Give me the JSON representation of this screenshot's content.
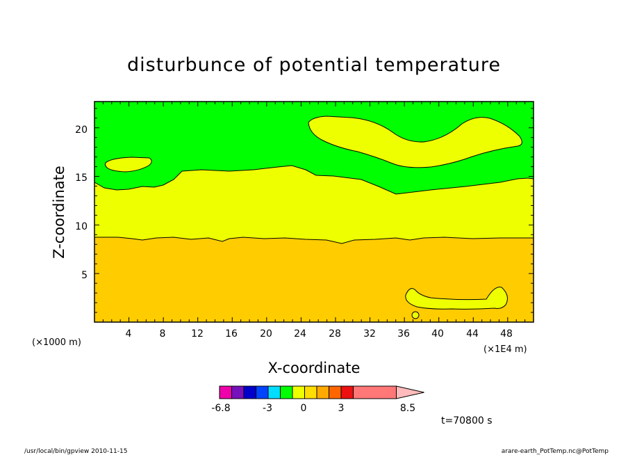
{
  "chart_data": {
    "type": "heatmap",
    "title": "disturbunce of potential temperature",
    "xlabel": "X-coordinate",
    "ylabel": "Z-coordinate",
    "x_unit": "(×1E4 m)",
    "y_unit": "(×1000 m)",
    "xlim": [
      0,
      51
    ],
    "ylim": [
      0,
      22.7
    ],
    "x_ticks": [
      "4",
      "8",
      "12",
      "16",
      "20",
      "24",
      "28",
      "32",
      "36",
      "40",
      "44",
      "48"
    ],
    "y_ticks": [
      "5",
      "10",
      "15",
      "20"
    ],
    "time_label": "t=70800 s",
    "colorbar": {
      "colors": [
        "#ee00aa",
        "#7711bb",
        "#0000cc",
        "#0044ff",
        "#00ddff",
        "#00ff00",
        "#eeff00",
        "#ffdd00",
        "#ffaa00",
        "#ff6600",
        "#ee1111",
        "#ff7777",
        "#ffbbbb"
      ],
      "tick_labels": [
        "-6.8",
        "-3",
        "0",
        "3",
        "8.5"
      ]
    },
    "regions": [
      {
        "color": "#00ff00",
        "description": "upper layer, z above ~15"
      },
      {
        "color": "#eeff00",
        "description": "middle layer, z ~9 to ~15, plus elevated patches near x=28-48 and x=2-7"
      },
      {
        "color": "#ffcc00",
        "description": "lower layer, z below ~9"
      }
    ]
  },
  "footer": {
    "left": "/usr/local/bin/gpview   2010-11-15",
    "right": "arare-earth_PotTemp.nc@PotTemp"
  }
}
